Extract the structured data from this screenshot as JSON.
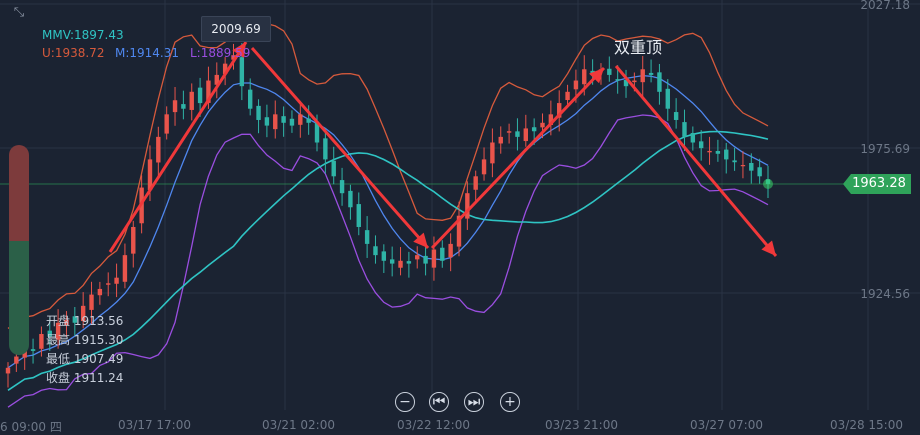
{
  "indicators": {
    "mmv": "MMV:1897.43",
    "upper": "U:1938.72",
    "middle": "M:1914.31",
    "lower": "L:1889.59"
  },
  "ohlc": {
    "open": "开盘 1913.56",
    "high": "最高 1915.30",
    "low": "最低 1907.49",
    "close": "收盘 1911.24"
  },
  "annotation": "双重顶",
  "tooltip_price": "2009.69",
  "current_price": "1963.28",
  "price_labels": [
    "2027.18",
    "1975.69",
    "1924.56"
  ],
  "time_labels": [
    "6 09:00 四",
    "03/17 17:00",
    "03/21 02:00",
    "03/22 12:00",
    "03/23 21:00",
    "03/27 07:00",
    "03/28 15:00"
  ],
  "controls": {
    "zoom_out": "−",
    "prev": "⏮",
    "next": "⏭",
    "zoom_in": "+"
  },
  "colors": {
    "bg": "#1b2332",
    "up": "#e9544b",
    "down": "#2fb4a7",
    "upper": "#d65a3c",
    "middle": "#4f87ef",
    "lower": "#9a4ee0",
    "mmv": "#2fc4c4",
    "arrow": "#f0383a",
    "current": "#2fa35a"
  },
  "chart_data": {
    "type": "candlestick",
    "price_axis_ticks": [
      2027.18,
      1975.69,
      1924.56
    ],
    "current_price": 1963.28,
    "peak_label": 2009.69,
    "close": [
      1898,
      1902,
      1906,
      1904,
      1910,
      1909,
      1914,
      1915,
      1914,
      1920,
      1924,
      1926,
      1928,
      1930,
      1938,
      1948,
      1962,
      1972,
      1980,
      1988,
      1993,
      1990,
      1996,
      1992,
      2000,
      2002,
      2006,
      2009,
      1998,
      1990,
      1986,
      1984,
      1988,
      1985,
      1984,
      1988,
      1985,
      1978,
      1972,
      1966,
      1960,
      1955,
      1948,
      1942,
      1938,
      1936,
      1935,
      1936,
      1935,
      1938,
      1935,
      1940,
      1936,
      1942,
      1952,
      1960,
      1966,
      1972,
      1978,
      1980,
      1982,
      1980,
      1983,
      1982,
      1985,
      1988,
      1992,
      1996,
      2000,
      2004,
      2002,
      2004,
      2002,
      2000,
      1998,
      2000,
      2004,
      2002,
      1996,
      1990,
      1986,
      1980,
      1978,
      1976,
      1975,
      1974,
      1972,
      1971,
      1970,
      1968,
      1966,
      1963.28
    ],
    "bands": {
      "upper": "U",
      "middle": "M",
      "lower": "L",
      "mmv": "MMV"
    },
    "notes": "double top pattern with arrows"
  }
}
